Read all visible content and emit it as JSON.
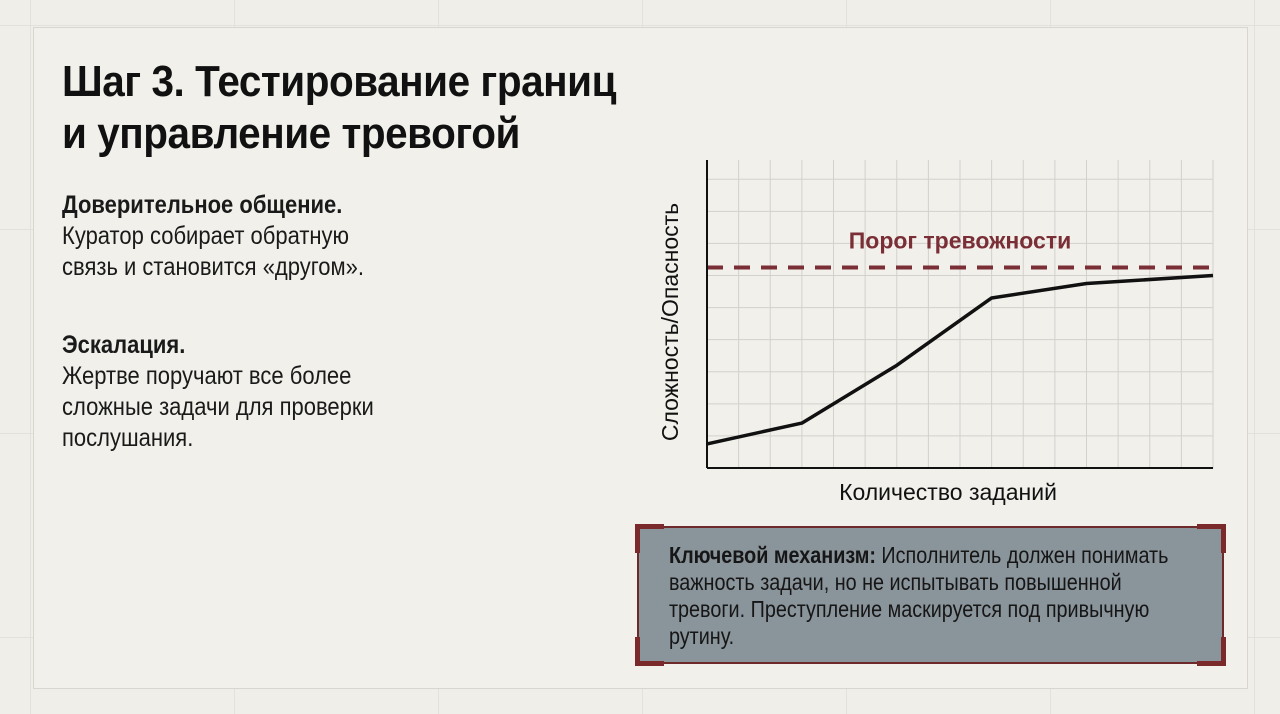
{
  "slide": {
    "title_line1": "Шаг 3. Тестирование границ",
    "title_line2": "и управление тревогой",
    "sections": [
      {
        "heading": "Доверительное общение.",
        "lines": [
          "Куратор собирает обратную",
          "связь и становится «другом»."
        ]
      },
      {
        "heading": "Эскалация.",
        "lines": [
          "Жертве поручают все более",
          "сложные задачи для проверки",
          "послушания."
        ]
      }
    ],
    "callout": {
      "label": "Ключевой механизм:",
      "text": "Исполнитель должен понимать важность задачи, но не испытывать повышенной тревоги. Преступление маскируется под привычную рутину."
    }
  },
  "colors": {
    "threshold": "#7a2e36",
    "line": "#111111",
    "callout_bg": "#8a949b",
    "callout_border": "#6e2a2a"
  },
  "chart_data": {
    "type": "line",
    "title": "",
    "xlabel": "Количество заданий",
    "ylabel": "Сложность/Опасность",
    "xlim": [
      0,
      16
    ],
    "ylim": [
      0,
      9.6
    ],
    "grid": true,
    "tick_labels": false,
    "series": [
      {
        "x": [
          0,
          3,
          6,
          9,
          12,
          16
        ],
        "y": [
          0.75,
          1.4,
          3.2,
          5.3,
          5.75,
          6.0
        ]
      }
    ],
    "threshold": {
      "label": "Порог тревожности",
      "y": 6.25,
      "style": "dashed"
    }
  }
}
